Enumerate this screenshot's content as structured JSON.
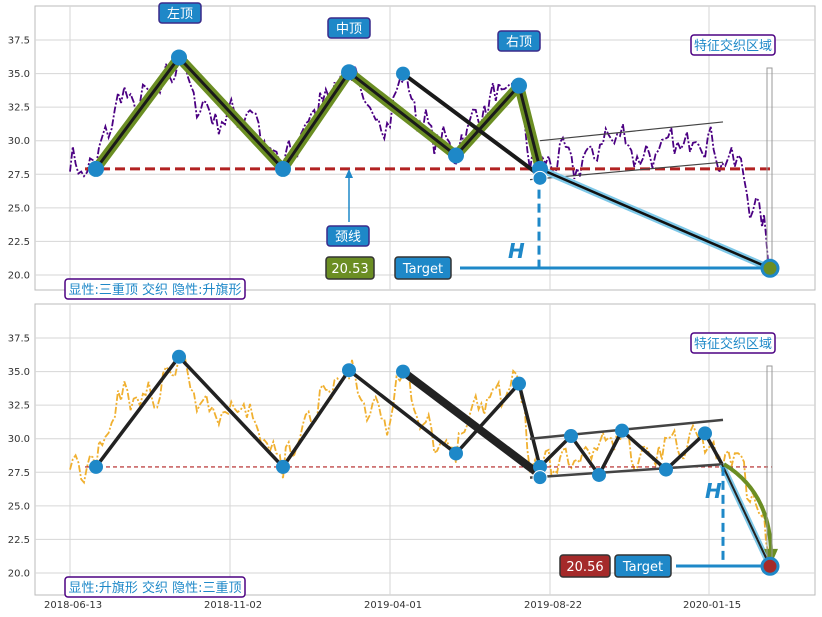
{
  "chart_data": [
    {
      "type": "line",
      "series": [
        {
          "values_note": "",
          "color": "#4b0082",
          "style": "dash-dot"
        }
      ],
      "x_dates": [
        "2018-06-13",
        "2018-11-02",
        "2019-04-01",
        "2019-08-22",
        "2020-01-15"
      ],
      "ylim": [
        18.5,
        39.5
      ],
      "yticks": [
        "20.0",
        "22.5",
        "25.0",
        "27.5",
        "30.0",
        "32.5",
        "35.0",
        "37.5"
      ],
      "neckline": 27.9,
      "peaks": {
        "left_label": "左顶",
        "middle_label": "中顶",
        "right_label": "右顶",
        "neckline_label": "颈线",
        "zone_label": "特征交织区域",
        "h_label": "H",
        "target_label": "Target",
        "target_value": "20.53",
        "legend": "显性:三重顶 交织 隐性:升旗形"
      },
      "pattern_points": [
        {
          "date": "2018-07-20",
          "y": 27.9
        },
        {
          "date": "2018-10-05",
          "y": 36.2
        },
        {
          "date": "2019-01-05",
          "y": 27.9
        },
        {
          "date": "2019-03-25",
          "y": 35.1
        },
        {
          "date": "2019-07-01",
          "y": 28.9
        },
        {
          "date": "2019-08-10",
          "y": 34.1
        },
        {
          "date": "2019-08-25",
          "y": 27.9
        },
        {
          "date": "2020-03-25",
          "y": 20.5
        }
      ],
      "colors": {
        "line": "#4b0082",
        "pattern": "#6b8e23",
        "neck": "#b22222",
        "marker": "#1e88c8",
        "target": "#1e88c8",
        "value_box": "#6b8e23"
      }
    },
    {
      "type": "line",
      "series": [
        {
          "color": "#f0b030",
          "style": "dash-dot"
        }
      ],
      "ylim": [
        18.5,
        39.5
      ],
      "yticks": [
        "20.0",
        "22.5",
        "25.0",
        "27.5",
        "30.0",
        "32.5",
        "35.0",
        "37.5"
      ],
      "xticks": [
        "2018-06-13",
        "2018-11-02",
        "2019-04-01",
        "2019-08-22",
        "2020-01-15"
      ],
      "neckline": 27.9,
      "labels": {
        "zone_label": "特征交织区域",
        "h_label": "H",
        "target_label": "Target",
        "target_value": "20.56",
        "legend": "显性:升旗形 交织 隐性:三重顶"
      },
      "colors": {
        "line": "#f0b030",
        "neck": "#b22222",
        "marker": "#1e88c8",
        "value_box": "#a52a2a",
        "arrow": "#6b8e23"
      }
    }
  ]
}
